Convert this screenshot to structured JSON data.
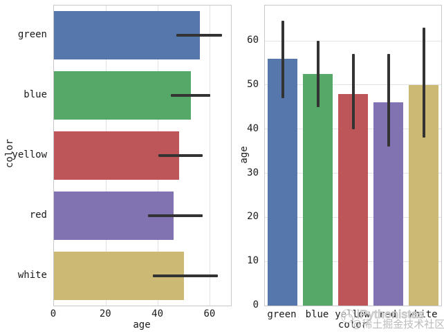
{
  "watermark": {
    "brand": "iPythonistas",
    "handle": "@稀土掘金技术社区",
    "logo_icon": "circle-mascot-logo"
  },
  "palette": {
    "bar_colors": [
      "#5577ab",
      "#55a868",
      "#bc5658",
      "#8172b2",
      "#ccb974"
    ],
    "error_bar": "#333333",
    "grid": "#e1e1e6",
    "spine": "#c8c8cc",
    "text": "#1a1a1a",
    "background": "#ffffff",
    "watermark_text": "#b7b7b7"
  },
  "chart_data": [
    {
      "type": "bar",
      "orientation": "horizontal",
      "title": "",
      "categories": [
        "green",
        "blue",
        "yellow",
        "red",
        "white"
      ],
      "values": [
        56,
        52.5,
        48,
        46,
        50
      ],
      "error_low": [
        47,
        45,
        40,
        36,
        38
      ],
      "error_high": [
        64.5,
        60,
        57,
        57,
        63
      ],
      "xlabel": "age",
      "ylabel": "color",
      "value_ticks": [
        0,
        20,
        40,
        60
      ],
      "value_range": [
        0,
        68
      ],
      "grid": "vertical-gridlines",
      "legend": false
    },
    {
      "type": "bar",
      "orientation": "vertical",
      "title": "",
      "categories": [
        "green",
        "blue",
        "yellow",
        "red",
        "white"
      ],
      "values": [
        56,
        52.5,
        48,
        46,
        50
      ],
      "error_low": [
        47,
        45,
        40,
        36,
        38
      ],
      "error_high": [
        64.5,
        60,
        57,
        57,
        63
      ],
      "xlabel": "color",
      "ylabel": "age",
      "value_ticks": [
        0,
        10,
        20,
        30,
        40,
        50,
        60
      ],
      "value_range": [
        0,
        68
      ],
      "grid": "horizontal-gridlines",
      "legend": false
    }
  ]
}
